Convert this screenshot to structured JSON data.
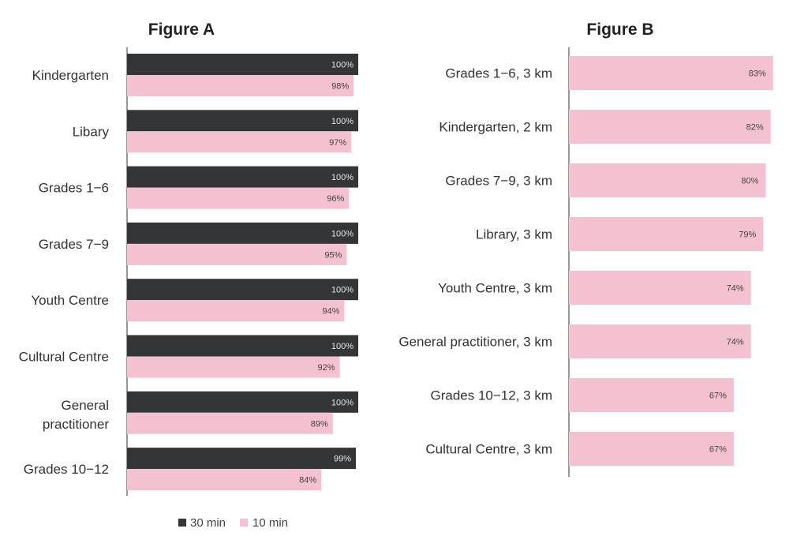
{
  "chart_data": [
    {
      "type": "bar",
      "orientation": "horizontal",
      "title": "Figure A",
      "categories": [
        "Kindergarten",
        "Libary",
        "Grades 1−6",
        "Grades 7−9",
        "Youth Centre",
        "Cultural Centre",
        "General practitioner",
        "Grades 10−12"
      ],
      "series": [
        {
          "name": "30 min",
          "color": "#333537",
          "values": [
            100,
            100,
            100,
            100,
            100,
            100,
            100,
            99
          ]
        },
        {
          "name": "10 min",
          "color": "#f4c1d1",
          "values": [
            98,
            97,
            96,
            95,
            94,
            92,
            89,
            84
          ]
        }
      ],
      "value_suffix": "%",
      "legend": "bottom",
      "grid": false
    },
    {
      "type": "bar",
      "orientation": "horizontal",
      "title": "Figure B",
      "categories": [
        "Grades 1−6, 3 km",
        "Kindergarten, 2 km",
        "Grades 7−9, 3 km",
        "Library, 3 km",
        "Youth Centre, 3 km",
        "General practitioner, 3 km",
        "Grades 10−12, 3 km",
        "Cultural Centre, 3 km"
      ],
      "series": [
        {
          "color": "#f4c1d1",
          "values": [
            83,
            82,
            80,
            79,
            74,
            74,
            67,
            67
          ]
        }
      ],
      "value_suffix": "%",
      "grid": false
    }
  ],
  "legend": {
    "items": [
      {
        "label": "30 min",
        "color": "#333537"
      },
      {
        "label": "10 min",
        "color": "#f4c1d1"
      }
    ]
  }
}
